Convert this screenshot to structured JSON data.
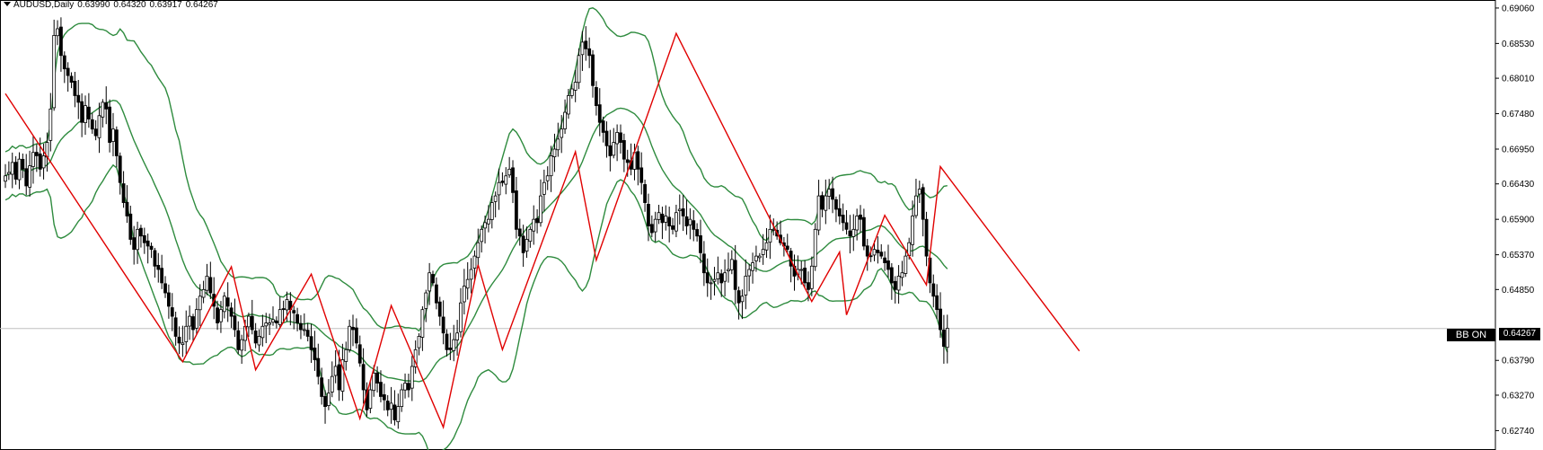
{
  "header": {
    "symbol_timeframe": "AUDUSD,Daily",
    "open": "0.63990",
    "high": "0.64320",
    "low": "0.63917",
    "close": "0.64267"
  },
  "bb_button_label": "BB ON",
  "current_price_label": "0.64267",
  "colors": {
    "bollinger": "#2e8b3e",
    "zigzag": "#e00000",
    "candle": "#000000",
    "background": "#ffffff",
    "price_line": "#c0c0c0"
  },
  "chart_data": {
    "type": "candlestick",
    "title": "AUDUSD,Daily",
    "ylim": [
      0.6245,
      0.6918
    ],
    "y_ticks": [
      "0.69060",
      "0.68530",
      "0.68010",
      "0.67480",
      "0.66950",
      "0.66430",
      "0.65900",
      "0.65370",
      "0.64850",
      "0.64267",
      "0.63790",
      "0.63270",
      "0.62740"
    ],
    "current_price": 0.64267,
    "indicators": [
      "Bollinger Bands",
      "ZigZag"
    ],
    "close_series": [
      0.6655,
      0.666,
      0.6675,
      0.665,
      0.668,
      0.6665,
      0.664,
      0.667,
      0.669,
      0.6685,
      0.6665,
      0.6685,
      0.6705,
      0.6755,
      0.6865,
      0.6875,
      0.6835,
      0.6815,
      0.6805,
      0.6795,
      0.6775,
      0.6765,
      0.6735,
      0.676,
      0.674,
      0.6725,
      0.6715,
      0.6745,
      0.6765,
      0.6755,
      0.6705,
      0.6725,
      0.6685,
      0.6645,
      0.6615,
      0.6595,
      0.656,
      0.6545,
      0.6575,
      0.6565,
      0.6555,
      0.655,
      0.6545,
      0.652,
      0.6515,
      0.6495,
      0.648,
      0.646,
      0.6445,
      0.6415,
      0.6405,
      0.6405,
      0.643,
      0.6445,
      0.6425,
      0.6455,
      0.6475,
      0.6485,
      0.6505,
      0.648,
      0.646,
      0.6435,
      0.6455,
      0.6475,
      0.646,
      0.6445,
      0.6425,
      0.6395,
      0.641,
      0.643,
      0.6445,
      0.6425,
      0.6405,
      0.6415,
      0.643,
      0.6435,
      0.6435,
      0.644,
      0.6435,
      0.6455,
      0.6455,
      0.647,
      0.6455,
      0.645,
      0.6435,
      0.6425,
      0.6425,
      0.6415,
      0.6395,
      0.638,
      0.6355,
      0.6325,
      0.631,
      0.633,
      0.6355,
      0.637,
      0.6335,
      0.638,
      0.6395,
      0.643,
      0.6425,
      0.6405,
      0.6375,
      0.6335,
      0.6305,
      0.6335,
      0.636,
      0.6345,
      0.6325,
      0.632,
      0.6305,
      0.6315,
      0.629,
      0.631,
      0.6335,
      0.6345,
      0.6335,
      0.637,
      0.6395,
      0.6415,
      0.6455,
      0.648,
      0.651,
      0.6495,
      0.6465,
      0.6445,
      0.642,
      0.6395,
      0.6395,
      0.641,
      0.642,
      0.6465,
      0.649,
      0.65,
      0.6515,
      0.6535,
      0.6555,
      0.6575,
      0.6585,
      0.659,
      0.6615,
      0.6625,
      0.6645,
      0.6645,
      0.6655,
      0.6665,
      0.663,
      0.6575,
      0.6565,
      0.654,
      0.656,
      0.6575,
      0.659,
      0.6585,
      0.6625,
      0.6645,
      0.6655,
      0.6685,
      0.6695,
      0.671,
      0.6725,
      0.675,
      0.6775,
      0.6785,
      0.6795,
      0.6835,
      0.6855,
      0.6845,
      0.6835,
      0.679,
      0.676,
      0.6735,
      0.672,
      0.67,
      0.6685,
      0.6705,
      0.672,
      0.6705,
      0.668,
      0.6675,
      0.6665,
      0.669,
      0.6665,
      0.6645,
      0.6615,
      0.658,
      0.657,
      0.659,
      0.66,
      0.6585,
      0.6595,
      0.658,
      0.6575,
      0.66,
      0.6605,
      0.6595,
      0.658,
      0.659,
      0.6575,
      0.6565,
      0.654,
      0.651,
      0.6495,
      0.6495,
      0.65,
      0.651,
      0.6495,
      0.651,
      0.6515,
      0.653,
      0.6485,
      0.6465,
      0.6475,
      0.6505,
      0.6515,
      0.6525,
      0.6535,
      0.6535,
      0.6545,
      0.6555,
      0.6575,
      0.6575,
      0.6565,
      0.6555,
      0.655,
      0.6545,
      0.652,
      0.6505,
      0.6515,
      0.6515,
      0.6495,
      0.6485,
      0.652,
      0.6575,
      0.6625,
      0.6605,
      0.6625,
      0.6635,
      0.662,
      0.6605,
      0.6595,
      0.6585,
      0.6575,
      0.6565,
      0.6575,
      0.6595,
      0.659,
      0.655,
      0.6535,
      0.6535,
      0.6545,
      0.654,
      0.6535,
      0.6525,
      0.6515,
      0.6495,
      0.6485,
      0.6505,
      0.651,
      0.6535,
      0.6555,
      0.6595,
      0.6625,
      0.6635,
      0.659,
      0.6535,
      0.6495,
      0.6475,
      0.6455,
      0.6425,
      0.64,
      0.6427
    ],
    "zigzag_points": [
      {
        "bar": 0,
        "price": 0.6778
      },
      {
        "bar": 51,
        "price": 0.6377
      },
      {
        "bar": 65,
        "price": 0.6519
      },
      {
        "bar": 72,
        "price": 0.6365
      },
      {
        "bar": 88,
        "price": 0.6508
      },
      {
        "bar": 102,
        "price": 0.6292
      },
      {
        "bar": 111,
        "price": 0.6461
      },
      {
        "bar": 126,
        "price": 0.6279
      },
      {
        "bar": 136,
        "price": 0.6522
      },
      {
        "bar": 143,
        "price": 0.6395
      },
      {
        "bar": 164,
        "price": 0.6691
      },
      {
        "bar": 170,
        "price": 0.6529
      },
      {
        "bar": 193,
        "price": 0.6868
      },
      {
        "bar": 232,
        "price": 0.6467
      },
      {
        "bar": 240,
        "price": 0.6541
      },
      {
        "bar": 242,
        "price": 0.6447
      },
      {
        "bar": 253,
        "price": 0.6596
      },
      {
        "bar": 265,
        "price": 0.6492
      },
      {
        "bar": 269,
        "price": 0.6669
      },
      {
        "bar": 309,
        "price": 0.6393
      }
    ]
  }
}
